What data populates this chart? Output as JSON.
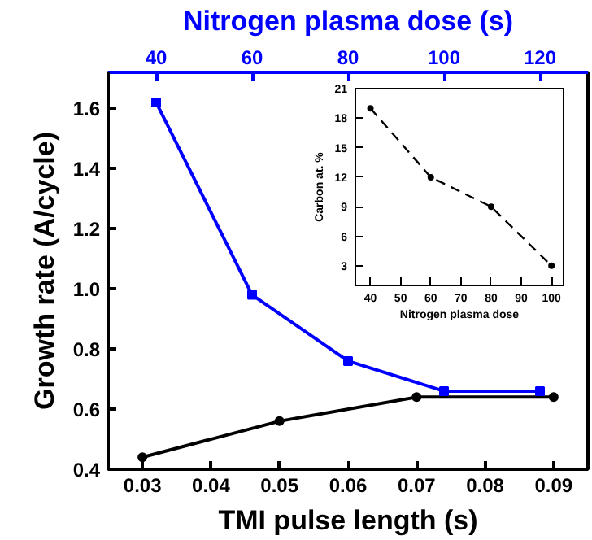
{
  "chart_data": [
    {
      "type": "line",
      "xlabel": "TMI pulse length (s)",
      "ylabel": "Growth rate (A/cycle)",
      "x2label": "Nitrogen plasma dose (s)",
      "xlim": [
        0.025,
        0.095
      ],
      "xticks": [
        0.03,
        0.04,
        0.05,
        0.06,
        0.07,
        0.08,
        0.09
      ],
      "x2lim": [
        30,
        130
      ],
      "x2ticks": [
        40,
        60,
        80,
        100,
        120
      ],
      "ylim": [
        0.4,
        1.72
      ],
      "yticks": [
        0.4,
        0.6,
        0.8,
        {
          "value": 1.0,
          "label": "1.0"
        },
        1.2,
        1.4,
        1.6
      ],
      "series": [
        {
          "color": "#000000",
          "marker": "circle",
          "x": [
            0.03,
            0.05,
            0.07,
            0.09
          ],
          "values": [
            0.44,
            0.56,
            0.64,
            0.64
          ]
        },
        {
          "color": "#0000ff",
          "marker": "square",
          "axis": "x2",
          "x": [
            40,
            60,
            80,
            100,
            120
          ],
          "values": [
            1.62,
            0.98,
            0.76,
            0.66,
            0.66
          ]
        }
      ]
    },
    {
      "type": "line",
      "xlabel": "Nitrogen plasma dose",
      "ylabel": "Carbon at. %",
      "xlim": [
        35,
        104
      ],
      "xticks": [
        40,
        50,
        60,
        70,
        80,
        90,
        100
      ],
      "ylim": [
        1,
        21
      ],
      "yticks": [
        3,
        6,
        9,
        12,
        15,
        18,
        21
      ],
      "series": [
        {
          "color": "#000000",
          "marker": "circle",
          "line_style": "dashed",
          "x": [
            40,
            60,
            80,
            100
          ],
          "values": [
            19,
            12,
            9,
            3
          ]
        }
      ]
    }
  ]
}
